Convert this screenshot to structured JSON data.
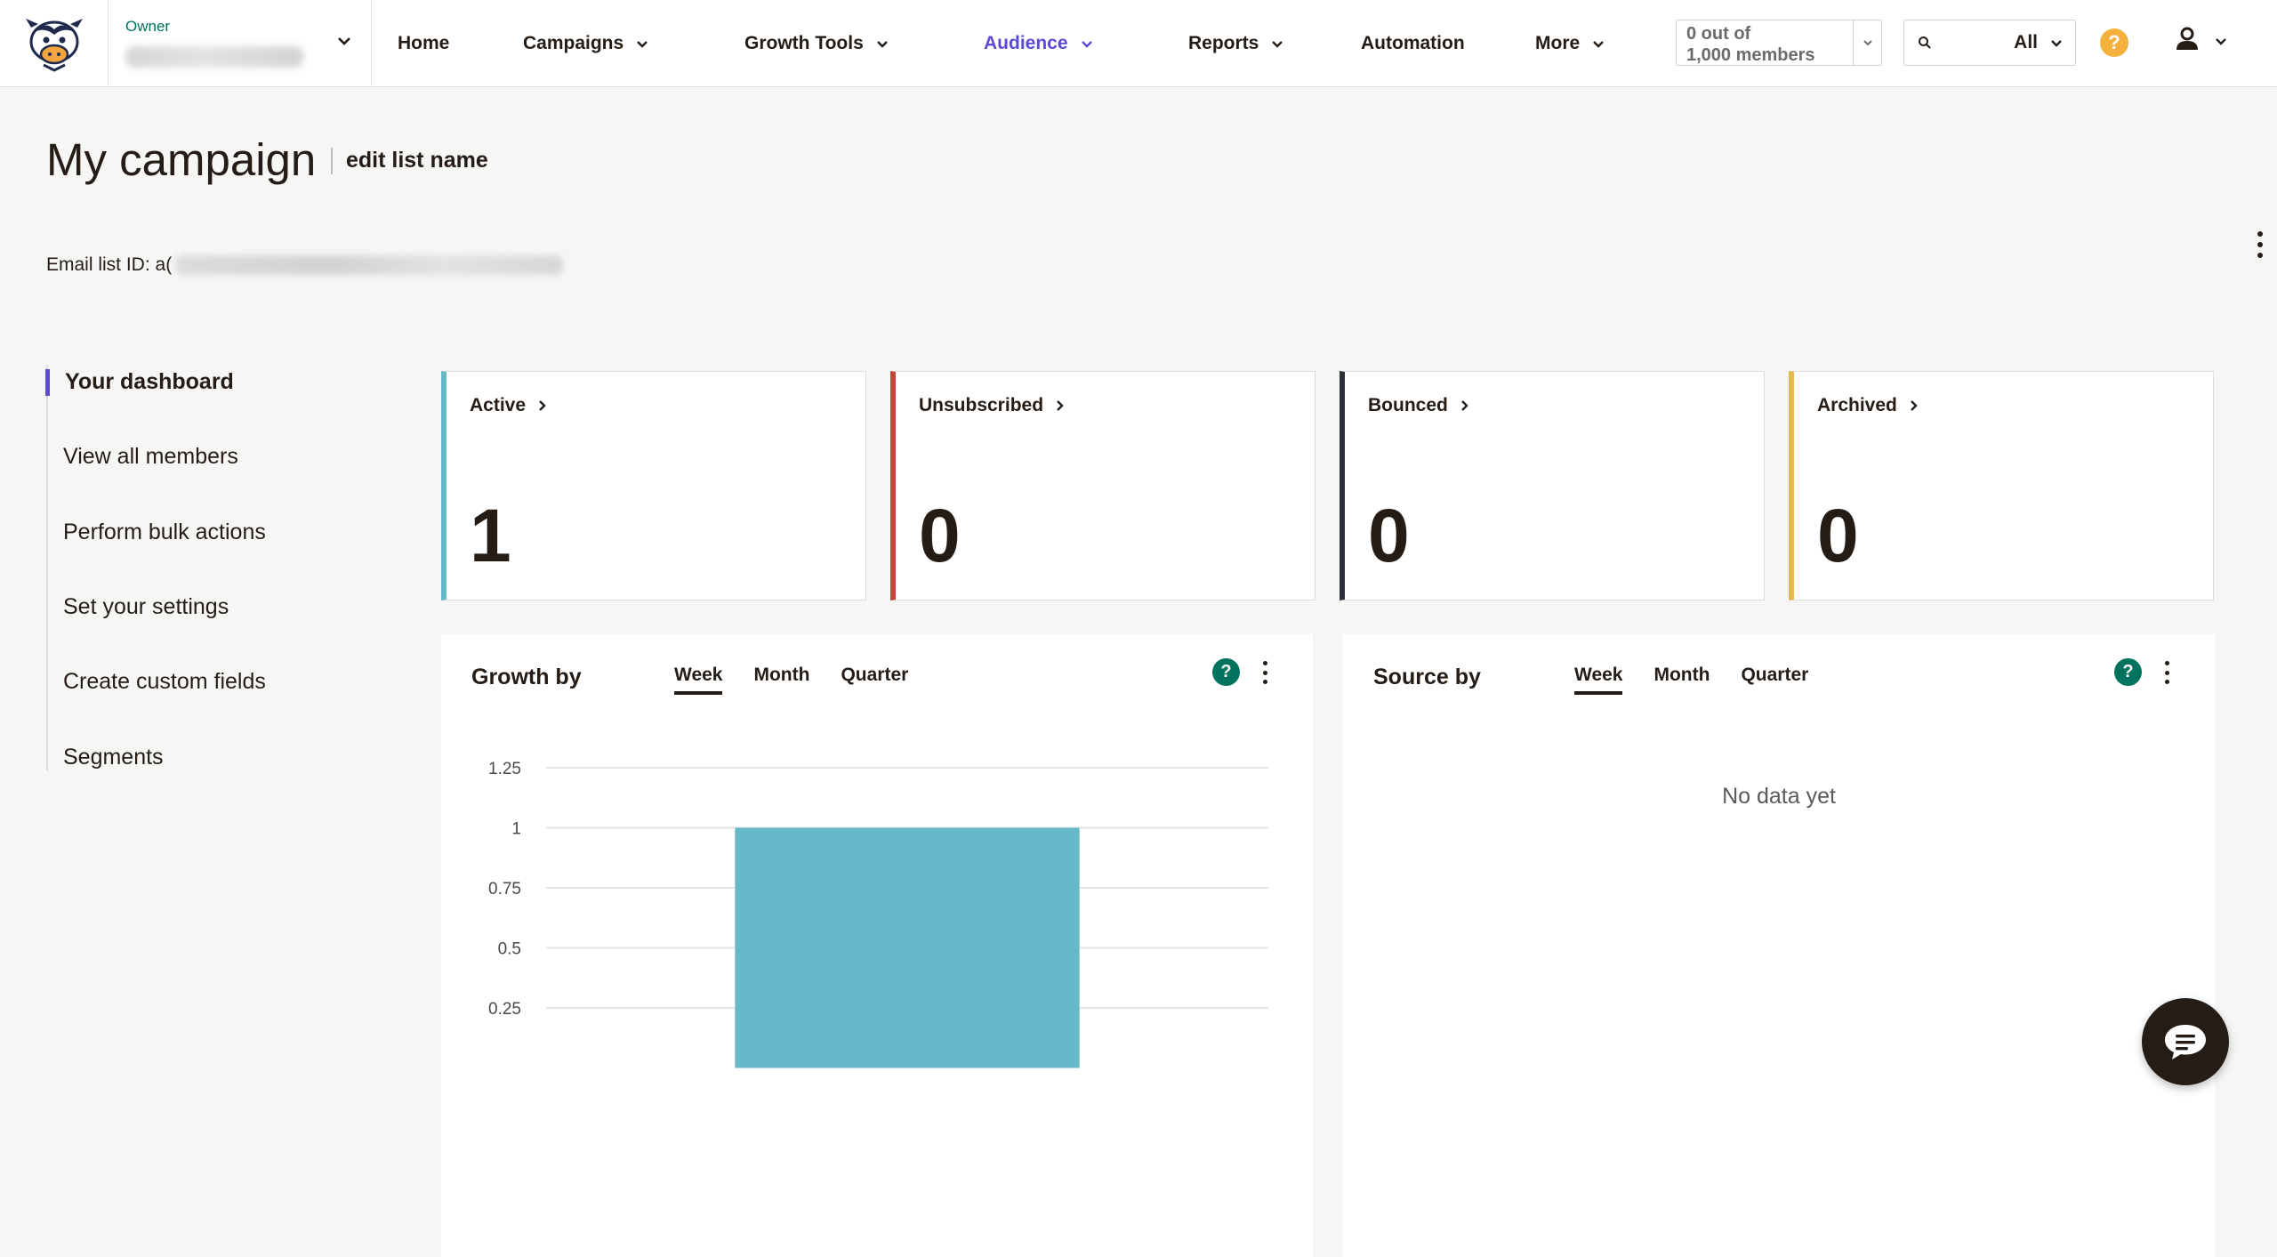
{
  "nav": {
    "owner_label": "Owner",
    "items": [
      {
        "label": "Home",
        "has_dropdown": false
      },
      {
        "label": "Campaigns",
        "has_dropdown": true
      },
      {
        "label": "Growth Tools",
        "has_dropdown": true
      },
      {
        "label": "Audience",
        "has_dropdown": true,
        "active": true
      },
      {
        "label": "Reports",
        "has_dropdown": true
      },
      {
        "label": "Automation",
        "has_dropdown": false
      },
      {
        "label": "More",
        "has_dropdown": true
      }
    ],
    "members_line1": "0 out of",
    "members_line2": "1,000 members",
    "search_scope": "All",
    "help_glyph": "?"
  },
  "header": {
    "title": "My campaign",
    "edit_link": "edit list name",
    "list_id_label": "Email list ID: a("
  },
  "sidebar": {
    "items": [
      {
        "label": "Your dashboard",
        "active": true
      },
      {
        "label": "View all members"
      },
      {
        "label": "Perform bulk actions"
      },
      {
        "label": "Set your settings"
      },
      {
        "label": "Create custom fields"
      },
      {
        "label": "Segments"
      }
    ]
  },
  "stats": [
    {
      "label": "Active",
      "value": "1",
      "color": "#66b8c8"
    },
    {
      "label": "Unsubscribed",
      "value": "0",
      "color": "#c2473a"
    },
    {
      "label": "Bounced",
      "value": "0",
      "color": "#2b2f3a"
    },
    {
      "label": "Archived",
      "value": "0",
      "color": "#e5b94e"
    }
  ],
  "growth": {
    "title": "Growth by",
    "tabs": [
      "Week",
      "Month",
      "Quarter"
    ],
    "active_tab": "Week",
    "help_glyph": "?"
  },
  "source": {
    "title": "Source by",
    "tabs": [
      "Week",
      "Month",
      "Quarter"
    ],
    "active_tab": "Week",
    "help_glyph": "?",
    "empty_text": "No data yet"
  },
  "chart_data": {
    "type": "bar",
    "categories": [
      ""
    ],
    "values": [
      1
    ],
    "title": "",
    "xlabel": "",
    "ylabel": "",
    "yticks": [
      "1.25",
      "1",
      "0.75",
      "0.5",
      "0.25"
    ],
    "ylim": [
      0,
      1.25
    ],
    "grid": true,
    "bar_color": "#66b8c8"
  },
  "colors": {
    "accent": "#5b4ad3",
    "help_yellow": "#f4b13d",
    "help_green": "#00735e",
    "text": "#241c15"
  }
}
